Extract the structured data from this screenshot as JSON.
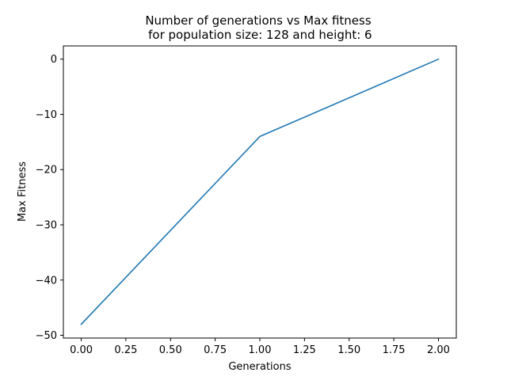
{
  "chart_data": {
    "type": "line",
    "title_line1": "Number of generations vs Max fitness",
    "title_line2": " for population size: 128 and height: 6",
    "xlabel": "Generations",
    "ylabel": "Max Fitness",
    "xlim": [
      -0.1,
      2.1
    ],
    "ylim": [
      -50.5,
      2.4
    ],
    "xticks": [
      0.0,
      0.25,
      0.5,
      0.75,
      1.0,
      1.25,
      1.5,
      1.75,
      2.0
    ],
    "xtick_labels": [
      "0.00",
      "0.25",
      "0.50",
      "0.75",
      "1.00",
      "1.25",
      "1.50",
      "1.75",
      "2.00"
    ],
    "yticks": [
      0,
      -10,
      -20,
      -30,
      -40,
      -50
    ],
    "ytick_labels": [
      "0",
      "−10",
      "−20",
      "−30",
      "−40",
      "−50"
    ],
    "series": [
      {
        "x": [
          0,
          1,
          2
        ],
        "y": [
          -48,
          -14,
          0
        ],
        "color": "#1f77b4"
      }
    ],
    "grid": false,
    "legend": false
  }
}
